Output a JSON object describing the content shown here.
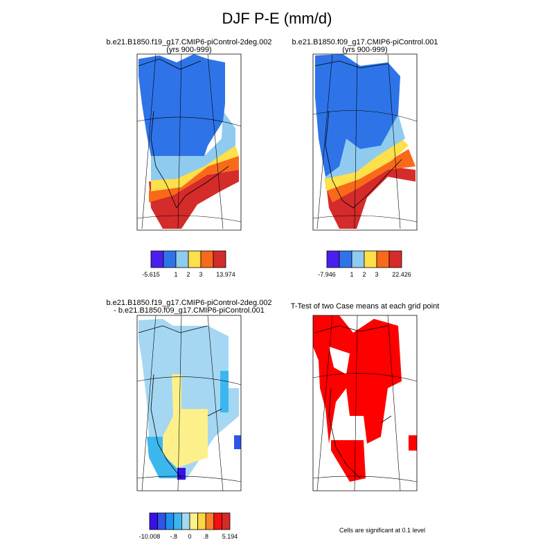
{
  "title": "DJF P-E (mm/d)",
  "panels": [
    {
      "title": "b.e21.B1850.f19_g17.CMIP6-piControl-2deg.002",
      "subtitle": "(yrs 900-999)",
      "colorbar": {
        "colors": [
          "#4b1ef0",
          "#2e74e8",
          "#8fcbef",
          "#fde04a",
          "#f86a1a",
          "#d42b2b"
        ],
        "labels": [
          "-5.615",
          "1",
          "2",
          "3",
          "13.974"
        ]
      }
    },
    {
      "title": "b.e21.B1850.f09_g17.CMIP6-piControl.001",
      "subtitle": "(yrs 900-999)",
      "colorbar": {
        "colors": [
          "#4b1ef0",
          "#2e74e8",
          "#8fcbef",
          "#fde04a",
          "#f86a1a",
          "#d42b2b"
        ],
        "labels": [
          "-7.946",
          "1",
          "2",
          "3",
          "22.426"
        ]
      }
    },
    {
      "title": "b.e21.B1850.f19_g17.CMIP6-piControl-2deg.002",
      "subtitle": "- b.e21.B1850.f09_g17.CMIP6-piControl.001",
      "colorbar": {
        "colors": [
          "#3a10e8",
          "#2e55e8",
          "#1f8ff0",
          "#3cb7ee",
          "#a5d7f2",
          "#fdf08a",
          "#fad740",
          "#f8802a",
          "#f21010",
          "#d52a2a"
        ],
        "labels": [
          "-10.008",
          "-.8",
          "0",
          ".8",
          "5.194"
        ]
      }
    },
    {
      "title": "T-Test of two Case means at each grid point",
      "note": "Cells are significant at 0.1 level"
    }
  ]
}
